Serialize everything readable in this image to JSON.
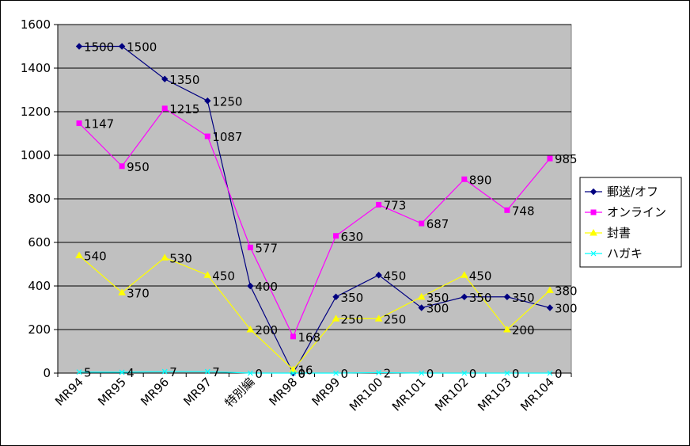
{
  "chart_data": {
    "type": "line",
    "title": "",
    "xlabel": "",
    "ylabel": "",
    "ylim": [
      0,
      1600
    ],
    "yticks": [
      0,
      200,
      400,
      600,
      800,
      1000,
      1200,
      1400,
      1600
    ],
    "grid": true,
    "legend": "right",
    "plot_background": "#c0c0c0",
    "categories": [
      "MR94",
      "MR95",
      "MR96",
      "MR97",
      "特別編",
      "MR98",
      "MR99",
      "MR100",
      "MR101",
      "MR102",
      "MR103",
      "MR104"
    ],
    "series": [
      {
        "name": "郵送/オフ",
        "color": "#000080",
        "marker": "diamond",
        "values": [
          1500,
          1500,
          1350,
          1250,
          400,
          0,
          350,
          450,
          300,
          350,
          350,
          300
        ],
        "labels": [
          "1500",
          "1500",
          "1350",
          "1250",
          "400",
          "0",
          "350",
          "450",
          "300",
          "350",
          "350",
          "300"
        ]
      },
      {
        "name": "オンライン",
        "color": "#ff00ff",
        "marker": "square",
        "values": [
          1147,
          950,
          1215,
          1087,
          577,
          168,
          630,
          773,
          687,
          890,
          748,
          985
        ],
        "labels": [
          "1147",
          "950",
          "1215",
          "1087",
          "577",
          "168",
          "630",
          "773",
          "687",
          "890",
          "748",
          "985"
        ]
      },
      {
        "name": "封書",
        "color": "#ffff00",
        "marker": "triangle",
        "values": [
          540,
          370,
          530,
          450,
          200,
          16,
          250,
          250,
          350,
          450,
          200,
          380
        ],
        "labels": [
          "540",
          "370",
          "530",
          "450",
          "200",
          "16",
          "250",
          "250",
          "350",
          "450",
          "200",
          "380"
        ]
      },
      {
        "name": "ハガキ",
        "color": "#00ffff",
        "marker": "x",
        "values": [
          5,
          4,
          7,
          7,
          0,
          0,
          0,
          2,
          0,
          0,
          0,
          0
        ],
        "labels": [
          "5",
          "4",
          "7",
          "7",
          "0",
          "0",
          "0",
          "2",
          "0",
          "0",
          "0",
          "0"
        ]
      }
    ]
  }
}
